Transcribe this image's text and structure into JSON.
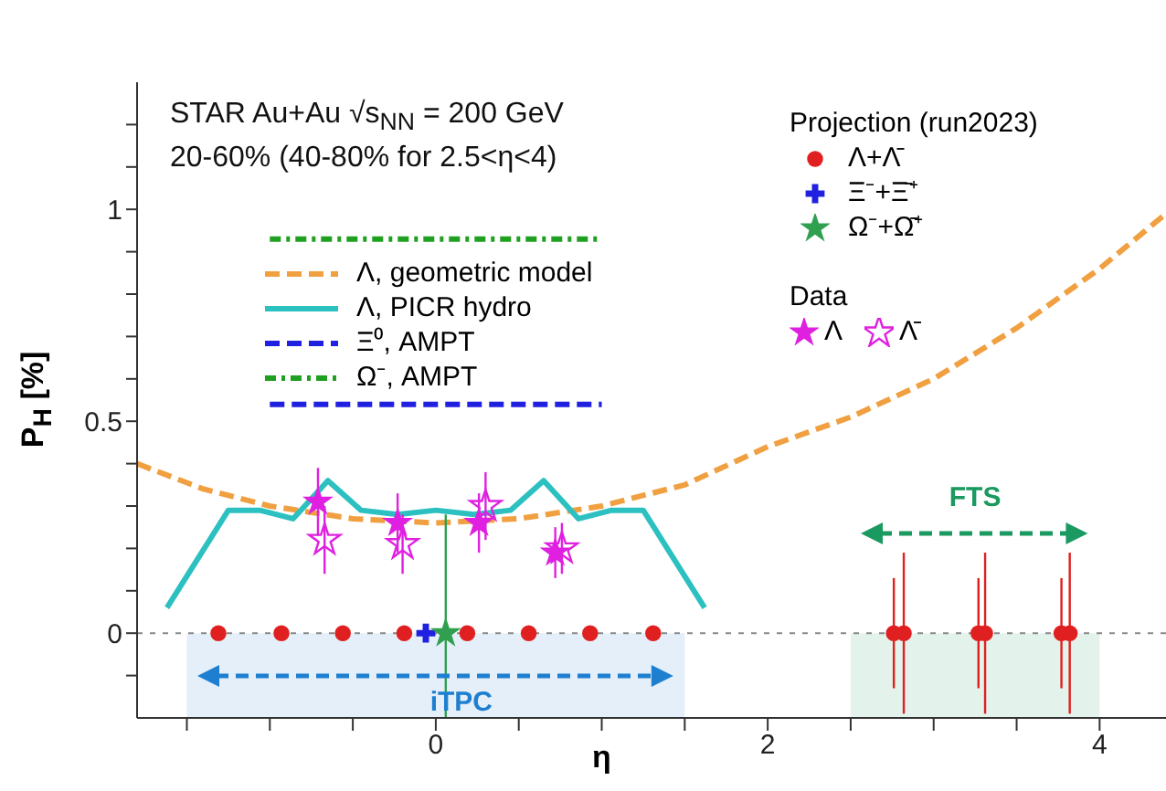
{
  "chart_data": {
    "type": "scatter",
    "title": "STAR Au+Au √s$_{NN}$ = 200 GeV",
    "subtitle": "20-60% (40-80% for 2.5<η<4)",
    "xlabel": "η",
    "ylabel": "P$_{H}$ [%]",
    "legend_title": "Projection (run2023)",
    "annotations": [
      "Data"
    ],
    "xlim": [
      -1.8,
      4.4
    ],
    "ylim": [
      -0.2,
      1.3
    ],
    "xticks": [
      {
        "value": -1.5,
        "label": null
      },
      {
        "value": -1,
        "label": null
      },
      {
        "value": -0.5,
        "label": null
      },
      0,
      {
        "value": 0.5,
        "label": null
      },
      {
        "value": 1,
        "label": null
      },
      {
        "value": 1.5,
        "label": null
      },
      2,
      {
        "value": 2.5,
        "label": null
      },
      {
        "value": 3,
        "label": null
      },
      {
        "value": 3.5,
        "label": null
      },
      4
    ],
    "yticks": [
      {
        "value": -0.1,
        "label": null
      },
      0,
      {
        "value": 0.1,
        "label": null
      },
      {
        "value": 0.2,
        "label": null
      },
      {
        "value": 0.3,
        "label": null
      },
      {
        "value": 0.4,
        "label": null
      },
      0.5,
      {
        "value": 0.6,
        "label": null
      },
      {
        "value": 0.7,
        "label": null
      },
      {
        "value": 0.8,
        "label": null
      },
      {
        "value": 0.9,
        "label": null
      },
      1,
      {
        "value": 1.1,
        "label": null
      },
      {
        "value": 1.2,
        "label": null
      }
    ],
    "grid": false,
    "legend": "top",
    "ref_lines": [
      {
        "axis": "y",
        "value": 0,
        "label": null,
        "color": "#888888",
        "line_style": "dotted"
      }
    ],
    "bands": [
      {
        "axis": "x",
        "from": -1.5,
        "to": 1.5,
        "label": "iTPC",
        "color": "#1e7fd0"
      },
      {
        "axis": "x",
        "from": 2.5,
        "to": 4,
        "label": "FTS",
        "color": "#1a9a60"
      }
    ],
    "series": [
      {
        "name": "Λ, geometric model",
        "type": "line",
        "line_style": "dashed",
        "color": "#f0a040",
        "x": [
          -1.8,
          -1.4,
          -1,
          -0.5,
          0,
          0.5,
          1,
          1.5,
          2,
          2.5,
          3,
          3.5,
          4,
          4.4
        ],
        "values": [
          0.4,
          0.34,
          0.3,
          0.27,
          0.26,
          0.27,
          0.3,
          0.35,
          0.44,
          0.51,
          0.6,
          0.72,
          0.86,
          0.99
        ]
      },
      {
        "name": "Λ, PICR hydro",
        "type": "line",
        "line_style": "solid",
        "color": "#2cc0c0",
        "x": [
          -1.62,
          -1.25,
          -1.06,
          -0.86,
          -0.65,
          -0.45,
          -0.23,
          0,
          0.23,
          0.45,
          0.65,
          0.86,
          1.06,
          1.25,
          1.62
        ],
        "values": [
          0.06,
          0.29,
          0.29,
          0.27,
          0.36,
          0.29,
          0.28,
          0.29,
          0.28,
          0.29,
          0.36,
          0.27,
          0.29,
          0.29,
          0.06
        ]
      },
      {
        "name": "Ξ⁰, AMPT",
        "type": "line",
        "line_style": "dashed",
        "color": "#2020e0",
        "x": [
          -1,
          1
        ],
        "values": [
          0.54,
          0.54
        ]
      },
      {
        "name": "Ω⁻, AMPT",
        "type": "line",
        "line_style": "dotted",
        "color": "#20a020",
        "x": [
          -1,
          1
        ],
        "values": [
          0.93,
          0.93
        ]
      },
      {
        "name": "Λ+Λ̄",
        "marker": "circle",
        "color": "#e02020",
        "x": [
          -1.31,
          -0.93,
          -0.56,
          -0.19,
          0.19,
          0.56,
          0.93,
          1.31,
          2.76,
          2.82,
          3.27,
          3.31,
          3.77,
          3.82
        ],
        "values": [
          0,
          0,
          0,
          0,
          0,
          0,
          0,
          0,
          0,
          0,
          0,
          0,
          0,
          0
        ],
        "errors": [
          null,
          null,
          null,
          null,
          null,
          null,
          null,
          null,
          0.13,
          0.19,
          0.13,
          0.19,
          0.13,
          0.19
        ]
      },
      {
        "name": "Ξ⁻+Ξ̄⁺",
        "marker": "cross",
        "color": "#2020e0",
        "x": [
          -0.06
        ],
        "values": [
          0
        ]
      },
      {
        "name": "Ω⁻+Ω̄⁺",
        "marker": "star",
        "color": "#30a050",
        "x": [
          0.06
        ],
        "values": [
          0
        ],
        "errors": [
          [
            -0.2,
            0.28
          ]
        ]
      },
      {
        "name": "Λ",
        "marker": "star",
        "color": "#e020e0",
        "x": [
          -0.71,
          -0.23,
          0.26,
          0.72
        ],
        "values": [
          0.31,
          0.26,
          0.26,
          0.19
        ],
        "errors": [
          0.08,
          0.07,
          0.07,
          0.06
        ]
      },
      {
        "name": "Λ̄",
        "marker": "star",
        "color": "#e020e0",
        "x": [
          -0.67,
          -0.2,
          0.3,
          0.76
        ],
        "values": [
          0.22,
          0.21,
          0.3,
          0.2
        ],
        "errors": [
          0.08,
          0.07,
          0.08,
          0.06
        ]
      }
    ]
  }
}
